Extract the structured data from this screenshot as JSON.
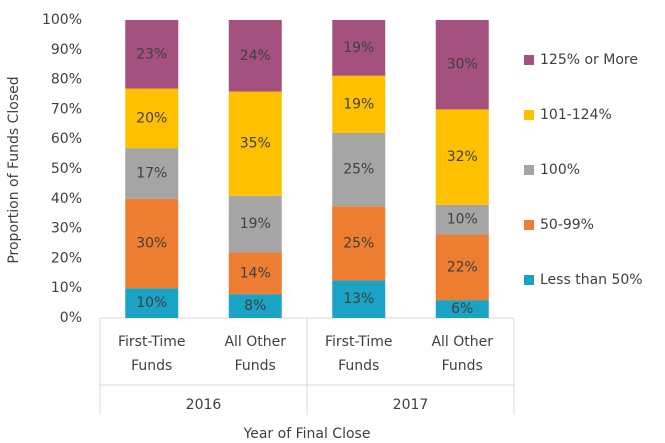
{
  "chart_data": {
    "type": "stacked_bar",
    "categories": [
      "First-Time Funds",
      "All Other Funds",
      "First-Time Funds",
      "All Other Funds"
    ],
    "groups": [
      "2016",
      "2017"
    ],
    "x_label": "Year of Final Close",
    "y_label": "Proportion of Funds Closed",
    "ylim": [
      0,
      100
    ],
    "yticks": [
      {
        "value": 0,
        "label": "0%"
      },
      {
        "value": 10,
        "label": "10%"
      },
      {
        "value": 20,
        "label": "20%"
      },
      {
        "value": 30,
        "label": "30%"
      },
      {
        "value": 40,
        "label": "40%"
      },
      {
        "value": 50,
        "label": "50%"
      },
      {
        "value": 60,
        "label": "60%"
      },
      {
        "value": 70,
        "label": "70%"
      },
      {
        "value": 80,
        "label": "80%"
      },
      {
        "value": 90,
        "label": "90%"
      },
      {
        "value": 100,
        "label": "100%"
      }
    ],
    "legend": "right",
    "series": [
      {
        "name": "Less than 50%",
        "color": "#1aa3c4",
        "values": [
          10,
          8,
          12.6,
          6
        ],
        "value_labels": [
          "10%",
          "8%",
          "13%",
          "6%"
        ]
      },
      {
        "name": "50-99%",
        "color": "#ed7d31",
        "values": [
          30,
          14,
          24.9,
          22
        ],
        "value_labels": [
          "30%",
          "14%",
          "25%",
          "22%"
        ]
      },
      {
        "name": "100%",
        "color": "#a5a5a5",
        "values": [
          17,
          19,
          24.6,
          10
        ],
        "value_labels": [
          "17%",
          "19%",
          "25%",
          "10%"
        ]
      },
      {
        "name": "101-124%",
        "color": "#ffc000",
        "values": [
          20,
          35,
          19.2,
          32
        ],
        "value_labels": [
          "20%",
          "35%",
          "19%",
          "32%"
        ]
      },
      {
        "name": "125% or More",
        "color": "#a5517f",
        "values": [
          23,
          24,
          18.7,
          30
        ],
        "value_labels": [
          "23%",
          "24%",
          "19%",
          "30%"
        ]
      }
    ]
  }
}
